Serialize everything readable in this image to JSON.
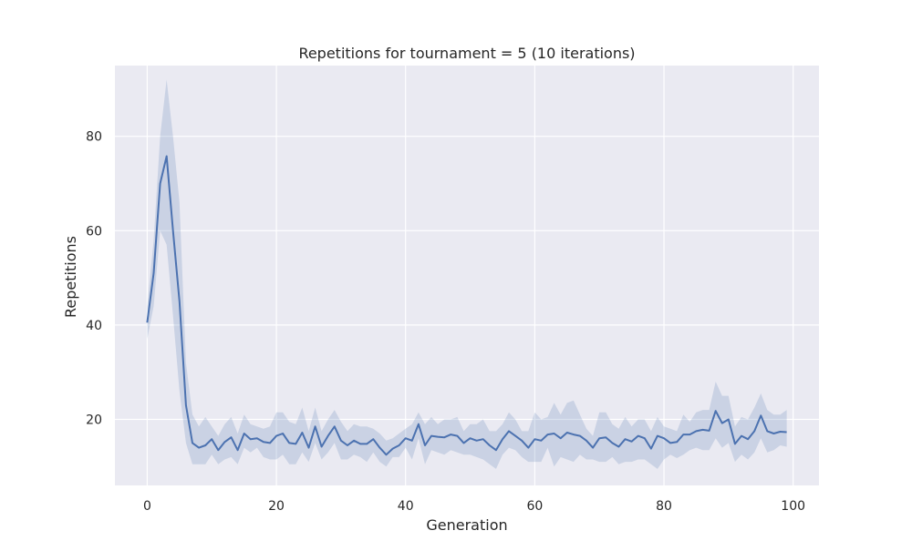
{
  "colors": {
    "plot_background": "#eaeaf2",
    "grid": "#ffffff",
    "line": "#4c72b0",
    "band": "#4c72b0",
    "text": "#262626"
  },
  "chart_data": {
    "type": "line",
    "title": "Repetitions for tournament = 5 (10 iterations)",
    "xlabel": "Generation",
    "ylabel": "Repetitions",
    "xlim": [
      -5,
      104
    ],
    "ylim": [
      6,
      95
    ],
    "xticks": [
      0,
      20,
      40,
      60,
      80,
      100
    ],
    "yticks": [
      20,
      40,
      60,
      80
    ],
    "grid": true,
    "series": [
      {
        "x": [
          0,
          1,
          2,
          3,
          4,
          5,
          6,
          7,
          8,
          9,
          10,
          11,
          12,
          13,
          14,
          15,
          16,
          17,
          18,
          19,
          20,
          21,
          22,
          23,
          24,
          25,
          26,
          27,
          28,
          29,
          30,
          31,
          32,
          33,
          34,
          35,
          36,
          37,
          38,
          39,
          40,
          41,
          42,
          43,
          44,
          45,
          46,
          47,
          48,
          49,
          50,
          51,
          52,
          53,
          54,
          55,
          56,
          57,
          58,
          59,
          60,
          61,
          62,
          63,
          64,
          65,
          66,
          67,
          68,
          69,
          70,
          71,
          72,
          73,
          74,
          75,
          76,
          77,
          78,
          79,
          80,
          81,
          82,
          83,
          84,
          85,
          86,
          87,
          88,
          89,
          90,
          91,
          92,
          93,
          94,
          95,
          96,
          97,
          98,
          99
        ],
        "mean": [
          40.5,
          51,
          70,
          75.8,
          60,
          45,
          23,
          15,
          14,
          14.5,
          15.8,
          13.5,
          15.2,
          16.2,
          13.5,
          17,
          15.8,
          16,
          15.2,
          15,
          16.5,
          17,
          15,
          14.8,
          17.2,
          14,
          18.5,
          14.2,
          16.5,
          18.5,
          15.5,
          14.5,
          15.5,
          14.8,
          14.8,
          15.8,
          14,
          12.5,
          13.8,
          14.5,
          16,
          15.5,
          19,
          14.5,
          16.5,
          16.3,
          16.2,
          16.8,
          16.5,
          15,
          16,
          15.5,
          15.8,
          14.5,
          13.5,
          15.8,
          17.5,
          16.5,
          15.5,
          14,
          15.8,
          15.5,
          16.8,
          17,
          16,
          17.2,
          16.8,
          16.5,
          15.5,
          14,
          16,
          16.2,
          15,
          14.2,
          15.8,
          15.3,
          16.5,
          16,
          13.8,
          16.5,
          16,
          15,
          15.2,
          16.8,
          16.8,
          17.5,
          17.8,
          17.6,
          21.8,
          19.2,
          20,
          14.8,
          16.5,
          15.8,
          17.5,
          20.8,
          17.5,
          17,
          17.4,
          17.3
        ],
        "lower": [
          37,
          44,
          60,
          57,
          42,
          26,
          15,
          10.5,
          10.5,
          10.5,
          12.5,
          10.5,
          11.5,
          12,
          10.5,
          14,
          13,
          14,
          12,
          11.5,
          11.5,
          12.5,
          10.5,
          10.5,
          13,
          11,
          15,
          11.5,
          13,
          15,
          11.5,
          11.5,
          12.5,
          12,
          11,
          13,
          11,
          10,
          12,
          12,
          14,
          11.5,
          16,
          10.5,
          13.5,
          13,
          12.5,
          13.5,
          13,
          12.5,
          12.5,
          12,
          11.5,
          10.5,
          9.5,
          12.5,
          14,
          13.5,
          12,
          11,
          11,
          11,
          14,
          10,
          12,
          11.5,
          11,
          12.5,
          11.5,
          11.5,
          11,
          11,
          12,
          10.5,
          11,
          11,
          11.5,
          11.5,
          10.5,
          9.5,
          11.5,
          12.5,
          11.8,
          12.5,
          13.5,
          14,
          13.5,
          13.5,
          16,
          14,
          15,
          11,
          12.5,
          11.5,
          13,
          16,
          13,
          13.5,
          14.5,
          14.2
        ],
        "upper": [
          44,
          58,
          80,
          92,
          80,
          66,
          32,
          21,
          18.5,
          20.5,
          18.5,
          16.5,
          19,
          20.5,
          17,
          21,
          19,
          18.5,
          18,
          18.5,
          21.5,
          21.5,
          19.5,
          19,
          22.5,
          17.5,
          22.5,
          17.5,
          20,
          22,
          19.5,
          17.5,
          19,
          18.5,
          18.5,
          18,
          17,
          15.5,
          16,
          17,
          18,
          19,
          21.5,
          19,
          20.5,
          19,
          20,
          20,
          20.5,
          17.5,
          19,
          19,
          20,
          17.5,
          17.5,
          19,
          21.5,
          20,
          17.5,
          17.5,
          21.5,
          20,
          20.5,
          23.5,
          21,
          23.5,
          24,
          21,
          18,
          16.5,
          21.5,
          21.5,
          19,
          18,
          20.5,
          18.5,
          20,
          20,
          17.5,
          20.5,
          18.5,
          18,
          17.5,
          21,
          19.5,
          21.5,
          22,
          22,
          28,
          25,
          25,
          18.5,
          20.5,
          20,
          22.5,
          25.5,
          22,
          21,
          21,
          22
        ]
      }
    ]
  }
}
